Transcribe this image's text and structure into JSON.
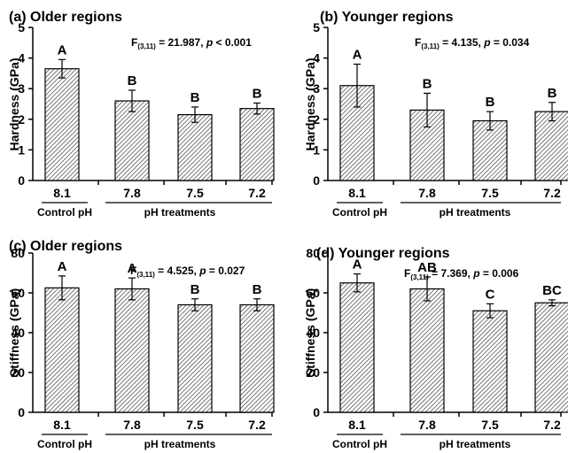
{
  "chart_data": [
    {
      "panel": "(a)",
      "type": "bar",
      "title": "Older regions",
      "ylabel": "Hardness (GPa)",
      "ylim": [
        0,
        5
      ],
      "yticks": [
        0,
        1,
        2,
        3,
        4,
        5
      ],
      "categories": [
        "8.1",
        "7.8",
        "7.5",
        "7.2"
      ],
      "values": [
        3.65,
        2.6,
        2.15,
        2.35
      ],
      "errors": [
        0.3,
        0.35,
        0.25,
        0.18
      ],
      "letters": [
        "A",
        "B",
        "B",
        "B"
      ],
      "stat_text": {
        "F": "F",
        "sub": "(3,11)",
        "rest": "= 21.987,",
        "p": "p",
        "p_rest": "< 0.001"
      },
      "group_labels": [
        "Control pH",
        "pH treatments"
      ]
    },
    {
      "panel": "(b)",
      "type": "bar",
      "title": "Younger regions",
      "ylabel": "Hardness (GPa)",
      "ylim": [
        0,
        5
      ],
      "yticks": [
        0,
        1,
        2,
        3,
        4,
        5
      ],
      "categories": [
        "8.1",
        "7.8",
        "7.5",
        "7.2"
      ],
      "values": [
        3.1,
        2.3,
        1.95,
        2.25
      ],
      "errors": [
        0.7,
        0.55,
        0.3,
        0.3
      ],
      "letters": [
        "A",
        "B",
        "B",
        "B"
      ],
      "stat_text": {
        "F": "F",
        "sub": "(3,11)",
        "rest": "= 4.135,",
        "p": "p",
        "p_rest": "= 0.034"
      },
      "group_labels": [
        "Control pH",
        "pH treatments"
      ]
    },
    {
      "panel": "(c)",
      "type": "bar",
      "title": "Older regions",
      "ylabel": "Stiffness (GPa)",
      "ylim": [
        0,
        80
      ],
      "yticks": [
        0,
        20,
        40,
        60,
        80
      ],
      "categories": [
        "8.1",
        "7.8",
        "7.5",
        "7.2"
      ],
      "values": [
        62.5,
        62,
        54,
        54
      ],
      "errors": [
        6,
        5.5,
        3,
        3
      ],
      "letters": [
        "A",
        "A",
        "B",
        "B"
      ],
      "stat_text": {
        "F": "F",
        "sub": "(3,11)",
        "rest": "= 4.525,",
        "p": "p",
        "p_rest": "= 0.027"
      },
      "group_labels": [
        "Control pH",
        "pH treatments"
      ]
    },
    {
      "panel": "(d)",
      "type": "bar",
      "title": "Younger regions",
      "ylabel": "Stiffness (GPa)",
      "ylim": [
        0,
        80
      ],
      "yticks": [
        0,
        20,
        40,
        60,
        80
      ],
      "categories": [
        "8.1",
        "7.8",
        "7.5",
        "7.2"
      ],
      "values": [
        65,
        62,
        51,
        55
      ],
      "errors": [
        4.5,
        6,
        3.5,
        1.5
      ],
      "letters": [
        "A",
        "AB",
        "C",
        "BC"
      ],
      "stat_text": {
        "F": "F",
        "sub": "(3,11)",
        "rest": "= 7.369,",
        "p": "p",
        "p_rest": "= 0.006"
      },
      "group_labels": [
        "Control pH",
        "pH treatments"
      ]
    }
  ],
  "colors": {
    "bar_fill": "#ffffff",
    "bar_hatch": "#555555",
    "axis": "#000000"
  }
}
